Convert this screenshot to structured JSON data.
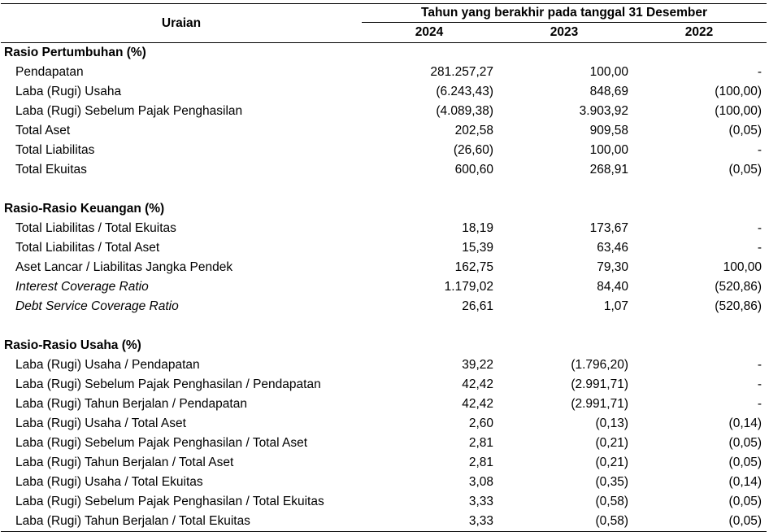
{
  "header": {
    "label_col": "Uraian",
    "period": "Tahun yang berakhir pada tanggal 31 Desember",
    "years": [
      "2024",
      "2023",
      "2022"
    ]
  },
  "sections": [
    {
      "title": "Rasio Pertumbuhan (%)",
      "rows": [
        {
          "label": "Pendapatan",
          "v2024": "281.257,27",
          "v2023": "100,00",
          "v2022": "-"
        },
        {
          "label": "Laba (Rugi) Usaha",
          "v2024": "(6.243,43)",
          "v2023": "848,69",
          "v2022": "(100,00)"
        },
        {
          "label": "Laba (Rugi) Sebelum Pajak Penghasilan",
          "v2024": "(4.089,38)",
          "v2023": "3.903,92",
          "v2022": "(100,00)"
        },
        {
          "label": "Total Aset",
          "v2024": "202,58",
          "v2023": "909,58",
          "v2022": "(0,05)"
        },
        {
          "label": "Total Liabilitas",
          "v2024": "(26,60)",
          "v2023": "100,00",
          "v2022": "-"
        },
        {
          "label": "Total Ekuitas",
          "v2024": "600,60",
          "v2023": "268,91",
          "v2022": "(0,05)"
        }
      ]
    },
    {
      "title": "Rasio-Rasio Keuangan (%)",
      "rows": [
        {
          "label": "Total Liabilitas / Total Ekuitas",
          "v2024": "18,19",
          "v2023": "173,67",
          "v2022": "-"
        },
        {
          "label": "Total Liabilitas / Total Aset",
          "v2024": "15,39",
          "v2023": "63,46",
          "v2022": "-"
        },
        {
          "label": "Aset Lancar / Liabilitas Jangka Pendek",
          "v2024": "162,75",
          "v2023": "79,30",
          "v2022": "100,00"
        },
        {
          "label": "Interest Coverage Ratio",
          "v2024": "1.179,02",
          "v2023": "84,40",
          "v2022": "(520,86)"
        },
        {
          "label": "Debt Service Coverage Ratio",
          "v2024": "26,61",
          "v2023": "1,07",
          "v2022": "(520,86)"
        }
      ]
    },
    {
      "title": "Rasio-Rasio Usaha (%)",
      "rows": [
        {
          "label": "Laba (Rugi) Usaha / Pendapatan",
          "v2024": "39,22",
          "v2023": "(1.796,20)",
          "v2022": "-"
        },
        {
          "label": "Laba (Rugi) Sebelum Pajak Penghasilan / Pendapatan",
          "v2024": "42,42",
          "v2023": "(2.991,71)",
          "v2022": "-"
        },
        {
          "label": "Laba (Rugi) Tahun Berjalan / Pendapatan",
          "v2024": "42,42",
          "v2023": "(2.991,71)",
          "v2022": "-"
        },
        {
          "label": "Laba (Rugi) Usaha / Total Aset",
          "v2024": "2,60",
          "v2023": "(0,13)",
          "v2022": "(0,14)"
        },
        {
          "label": "Laba (Rugi) Sebelum Pajak Penghasilan / Total Aset",
          "v2024": "2,81",
          "v2023": "(0,21)",
          "v2022": "(0,05)"
        },
        {
          "label": "Laba (Rugi) Tahun Berjalan / Total Aset",
          "v2024": "2,81",
          "v2023": "(0,21)",
          "v2022": "(0,05)"
        },
        {
          "label": "Laba (Rugi) Usaha / Total Ekuitas",
          "v2024": "3,08",
          "v2023": "(0,35)",
          "v2022": "(0,14)"
        },
        {
          "label": "Laba (Rugi) Sebelum Pajak Penghasilan / Total Ekuitas",
          "v2024": "3,33",
          "v2023": "(0,58)",
          "v2022": "(0,05)"
        },
        {
          "label": "Laba (Rugi) Tahun Berjalan / Total Ekuitas",
          "v2024": "3,33",
          "v2023": "(0,58)",
          "v2022": "(0,05)"
        }
      ]
    }
  ]
}
